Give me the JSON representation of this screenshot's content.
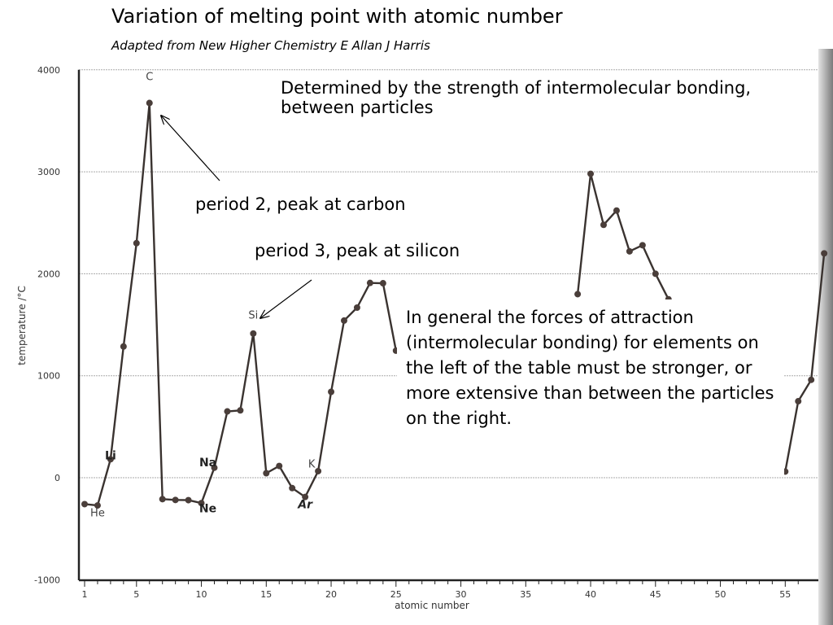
{
  "slide": {
    "title": "Variation of melting point with atomic number",
    "subtitle": "Adapted from New Higher Chemistry E Allan J Harris"
  },
  "annotations": {
    "determined_by": "Determined by the strength of intermolecular bonding, between particles",
    "period2": "period 2, peak at carbon",
    "period3": "period 3, peak at silicon",
    "general": "In general the forces of attraction (intermolecular bonding) for elements on the left of the table must be stronger, or more extensive than between the particles on the right."
  },
  "chart_data": {
    "type": "line",
    "title": "",
    "xlabel": "atomic number",
    "ylabel": "temperature /°C",
    "xlim": [
      1,
      56
    ],
    "ylim": [
      -1000,
      4000
    ],
    "xticks": [
      1,
      5,
      10,
      15,
      20,
      25,
      30,
      35,
      40,
      45,
      50,
      55
    ],
    "yticks": [
      4000,
      3000,
      2000,
      1000,
      0,
      -1000
    ],
    "grid": true,
    "series": [
      {
        "values_x": [
          1,
          2,
          3,
          4,
          5,
          6,
          7,
          8,
          9,
          10,
          11,
          12,
          13,
          14,
          15,
          16,
          17,
          18,
          19,
          20,
          21,
          22,
          23,
          24,
          25
        ],
        "values_y": [
          -259,
          -272,
          181,
          1287,
          2300,
          3675,
          -210,
          -218,
          -220,
          -249,
          98,
          650,
          660,
          1414,
          44,
          115,
          -102,
          -189,
          64,
          842,
          1541,
          1668,
          1910,
          1907,
          1246
        ]
      },
      {
        "values_x": [
          39,
          40,
          41,
          42,
          43,
          44,
          45,
          46
        ],
        "values_y": [
          1800,
          2980,
          2480,
          2620,
          2220,
          2280,
          2000,
          1750
        ]
      },
      {
        "values_x": [
          55,
          56,
          57,
          58
        ],
        "values_y": [
          60,
          750,
          960,
          2200
        ]
      }
    ],
    "point_labels": [
      {
        "text": "He",
        "x": 2,
        "y": -380
      },
      {
        "text": "Li",
        "x": 3,
        "y": 180
      },
      {
        "text": "C",
        "x": 6,
        "y": 3900
      },
      {
        "text": "Na",
        "x": 10.5,
        "y": 110
      },
      {
        "text": "Ne",
        "x": 10.5,
        "y": -340
      },
      {
        "text": "Si",
        "x": 14,
        "y": 1560
      },
      {
        "text": "K",
        "x": 18.5,
        "y": 100
      },
      {
        "text": "Ar",
        "x": 18,
        "y": -300
      }
    ],
    "colors": {
      "line": "#3a3330",
      "marker": "#4a3e3a",
      "grid": "#aaaaaa",
      "axis": "#222222"
    }
  }
}
